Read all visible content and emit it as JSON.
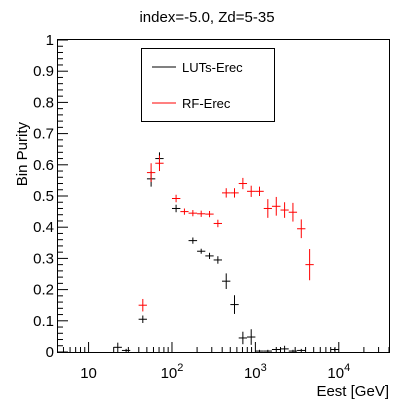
{
  "chart_data": {
    "type": "scatter",
    "title": "index=-5.0,  Zd=5-35",
    "xlabel": "Eest [GeV]",
    "ylabel": "Bin Purity",
    "x_scale": "log",
    "xlim": [
      4.3,
      40000
    ],
    "ylim": [
      0,
      1
    ],
    "x_ticks": [
      {
        "value": 10,
        "base": "10",
        "exp": ""
      },
      {
        "value": 100,
        "base": "10",
        "exp": "2"
      },
      {
        "value": 1000,
        "base": "10",
        "exp": "3"
      },
      {
        "value": 10000,
        "base": "10",
        "exp": "4"
      }
    ],
    "y_ticks": [
      {
        "value": 0,
        "label": "0"
      },
      {
        "value": 0.1,
        "label": "0.1"
      },
      {
        "value": 0.2,
        "label": "0.2"
      },
      {
        "value": 0.3,
        "label": "0.3"
      },
      {
        "value": 0.4,
        "label": "0.4"
      },
      {
        "value": 0.5,
        "label": "0.5"
      },
      {
        "value": 0.6,
        "label": "0.6"
      },
      {
        "value": 0.7,
        "label": "0.7"
      },
      {
        "value": 0.8,
        "label": "0.8"
      },
      {
        "value": 0.9,
        "label": "0.9"
      },
      {
        "value": 1,
        "label": "1"
      }
    ],
    "grid": false,
    "legend_position": "top-center",
    "series": [
      {
        "name": "LUTs-Erec",
        "color": "#000000",
        "points": [
          {
            "x": 22.4,
            "y": 0.015,
            "ex": [
              20.0,
              25.1
            ],
            "ey": 0.015
          },
          {
            "x": 28.2,
            "y": 0.005,
            "ex": [
              25.1,
              31.6
            ],
            "ey": 0.005
          },
          {
            "x": 44.7,
            "y": 0.105,
            "ex": [
              39.8,
              50.1
            ],
            "ey": 0.012
          },
          {
            "x": 56.2,
            "y": 0.555,
            "ex": [
              50.1,
              63.1
            ],
            "ey": 0.025
          },
          {
            "x": 70.8,
            "y": 0.62,
            "ex": [
              63.1,
              79.4
            ],
            "ey": 0.02
          },
          {
            "x": 112,
            "y": 0.46,
            "ex": [
              100,
              126
            ],
            "ey": 0.012
          },
          {
            "x": 178,
            "y": 0.357,
            "ex": [
              158,
              200
            ],
            "ey": 0.01
          },
          {
            "x": 224,
            "y": 0.323,
            "ex": [
              200,
              251
            ],
            "ey": 0.008
          },
          {
            "x": 282,
            "y": 0.308,
            "ex": [
              251,
              316
            ],
            "ey": 0.01
          },
          {
            "x": 355,
            "y": 0.295,
            "ex": [
              316,
              398
            ],
            "ey": 0.012
          },
          {
            "x": 447,
            "y": 0.227,
            "ex": [
              398,
              501
            ],
            "ey": 0.025
          },
          {
            "x": 562,
            "y": 0.152,
            "ex": [
              501,
              631
            ],
            "ey": 0.03
          },
          {
            "x": 708,
            "y": 0.045,
            "ex": [
              631,
              794
            ],
            "ey": 0.02
          },
          {
            "x": 891,
            "y": 0.048,
            "ex": [
              794,
              1000
            ],
            "ey": 0.025
          },
          {
            "x": 1120,
            "y": 0.003,
            "ex": [
              1000,
              1260
            ],
            "ey": 0.003
          },
          {
            "x": 1410,
            "y": 0.003,
            "ex": [
              1260,
              1580
            ],
            "ey": 0.003
          },
          {
            "x": 1780,
            "y": 0.008,
            "ex": [
              1580,
              2000
            ],
            "ey": 0.008
          },
          {
            "x": 2240,
            "y": 0.01,
            "ex": [
              2000,
              2510
            ],
            "ey": 0.01
          },
          {
            "x": 2820,
            "y": 0.003,
            "ex": [
              2510,
              3160
            ],
            "ey": 0.003
          },
          {
            "x": 3550,
            "y": 0.005,
            "ex": [
              3160,
              3980
            ],
            "ey": 0.005
          },
          {
            "x": 8910,
            "y": 0.008,
            "ex": [
              7940,
              10000
            ],
            "ey": 0.003
          }
        ]
      },
      {
        "name": "RF-Erec",
        "color": "#ff0000",
        "points": [
          {
            "x": 44.7,
            "y": 0.15,
            "ex": [
              39.8,
              50.1
            ],
            "ey": 0.02
          },
          {
            "x": 56.2,
            "y": 0.575,
            "ex": [
              50.1,
              63.1
            ],
            "ey": 0.03
          },
          {
            "x": 70.8,
            "y": 0.605,
            "ex": [
              63.1,
              79.4
            ],
            "ey": 0.025
          },
          {
            "x": 112,
            "y": 0.492,
            "ex": [
              100,
              126
            ],
            "ey": 0.012
          },
          {
            "x": 141,
            "y": 0.45,
            "ex": [
              126,
              158
            ],
            "ey": 0.01
          },
          {
            "x": 178,
            "y": 0.445,
            "ex": [
              158,
              200
            ],
            "ey": 0.01
          },
          {
            "x": 224,
            "y": 0.443,
            "ex": [
              200,
              251
            ],
            "ey": 0.01
          },
          {
            "x": 282,
            "y": 0.442,
            "ex": [
              251,
              316
            ],
            "ey": 0.01
          },
          {
            "x": 355,
            "y": 0.412,
            "ex": [
              316,
              398
            ],
            "ey": 0.012
          },
          {
            "x": 447,
            "y": 0.51,
            "ex": [
              398,
              501
            ],
            "ey": 0.015
          },
          {
            "x": 562,
            "y": 0.51,
            "ex": [
              501,
              631
            ],
            "ey": 0.015
          },
          {
            "x": 708,
            "y": 0.54,
            "ex": [
              631,
              794
            ],
            "ey": 0.018
          },
          {
            "x": 891,
            "y": 0.515,
            "ex": [
              794,
              1000
            ],
            "ey": 0.018
          },
          {
            "x": 1120,
            "y": 0.515,
            "ex": [
              1000,
              1260
            ],
            "ey": 0.015
          },
          {
            "x": 1410,
            "y": 0.46,
            "ex": [
              1260,
              1580
            ],
            "ey": 0.03
          },
          {
            "x": 1780,
            "y": 0.467,
            "ex": [
              1580,
              2000
            ],
            "ey": 0.03
          },
          {
            "x": 2240,
            "y": 0.455,
            "ex": [
              2000,
              2510
            ],
            "ey": 0.025
          },
          {
            "x": 2820,
            "y": 0.448,
            "ex": [
              2510,
              3160
            ],
            "ey": 0.03
          },
          {
            "x": 3550,
            "y": 0.395,
            "ex": [
              3160,
              3980
            ],
            "ey": 0.03
          },
          {
            "x": 4470,
            "y": 0.28,
            "ex": [
              3980,
              5010
            ],
            "ey": 0.05
          }
        ]
      }
    ]
  }
}
